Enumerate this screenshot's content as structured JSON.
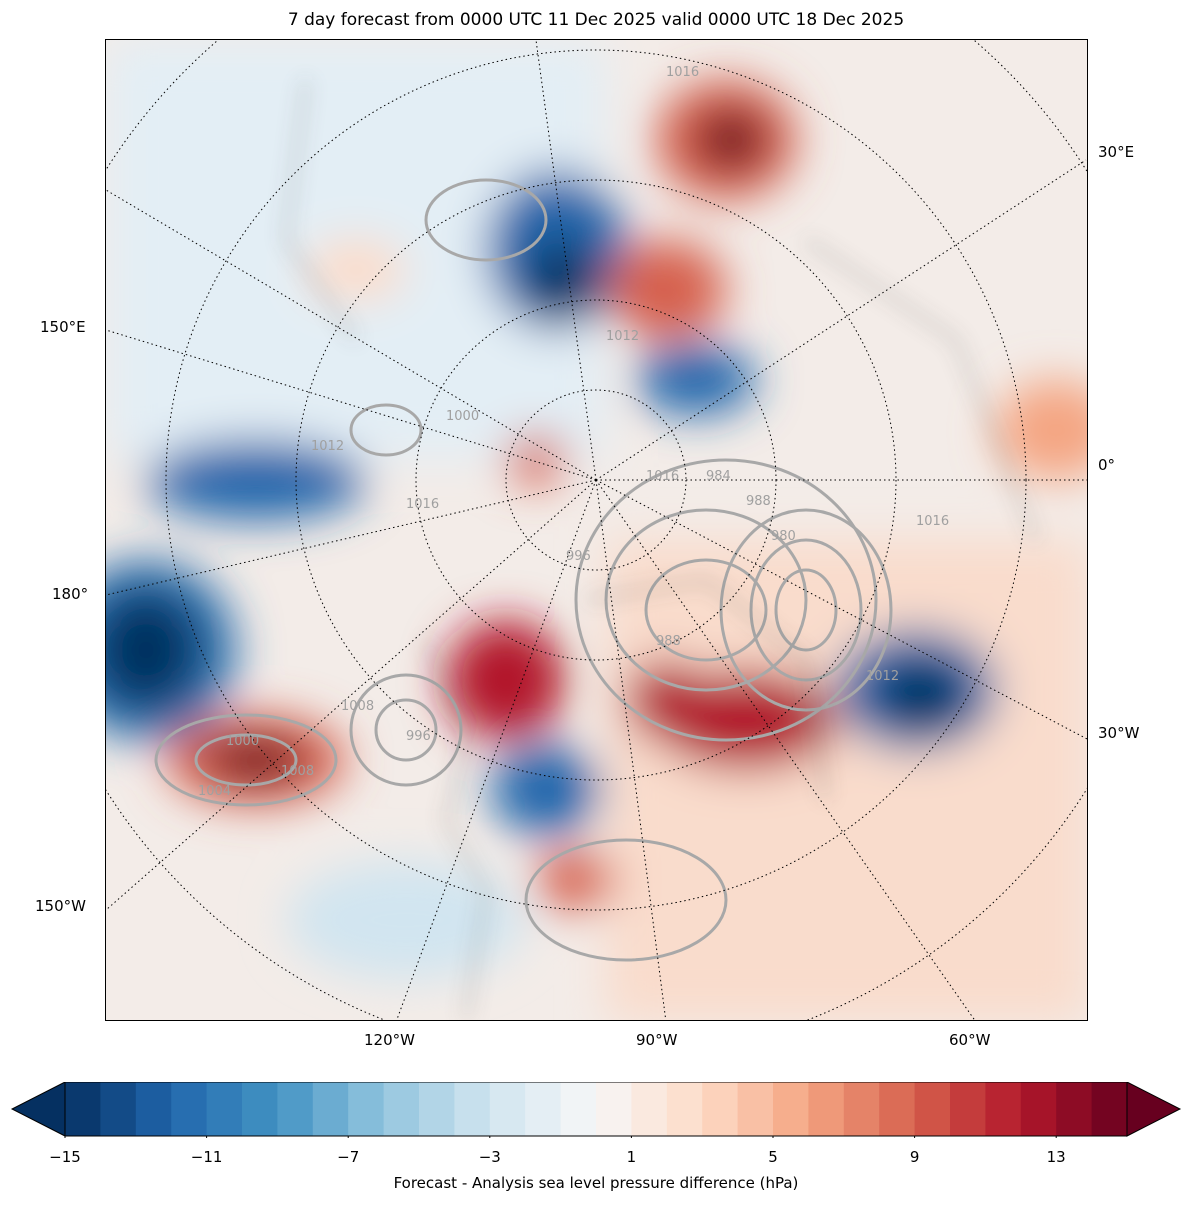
{
  "title": "7 day forecast from 0000 UTC 11 Dec 2025 valid 0000 UTC 18 Dec 2025",
  "map": {
    "projection": "north-polar-stereographic",
    "lon_labels": {
      "e30": "30°E",
      "e150": "150°E",
      "zero": "0°",
      "d180": "180°",
      "w30": "30°W",
      "w150": "150°W",
      "w120": "120°W",
      "w90": "90°W",
      "w60": "60°W"
    },
    "contour_labels": [
      "1016",
      "1012",
      "1016",
      "996",
      "980",
      "988",
      "984",
      "1012",
      "1008",
      "1004",
      "1000",
      "1008",
      "996",
      "1016",
      "1012",
      "1016",
      "1000",
      "988"
    ]
  },
  "chart_data": {
    "type": "heatmap",
    "title": "7 day forecast from 0000 UTC 11 Dec 2025 valid 0000 UTC 18 Dec 2025",
    "colorbar": {
      "label": "Forecast - Analysis sea level pressure difference (hPa)",
      "range": [
        -15,
        15
      ],
      "step": 1,
      "extend": "both",
      "ticks": [
        "−15",
        "−11",
        "−7",
        "−3",
        "1",
        "5",
        "9",
        "13"
      ],
      "tick_values": [
        -15,
        -11,
        -7,
        -3,
        1,
        5,
        9,
        13
      ],
      "colormap": "RdBu_r",
      "anchors": [
        "#053061",
        "#2166ac",
        "#4393c3",
        "#92c5de",
        "#d1e5f0",
        "#f7f7f7",
        "#fddbc7",
        "#f4a582",
        "#d6604d",
        "#b2182b",
        "#67001f"
      ]
    },
    "contour_field": "sea level pressure (hPa), gray contours"
  }
}
